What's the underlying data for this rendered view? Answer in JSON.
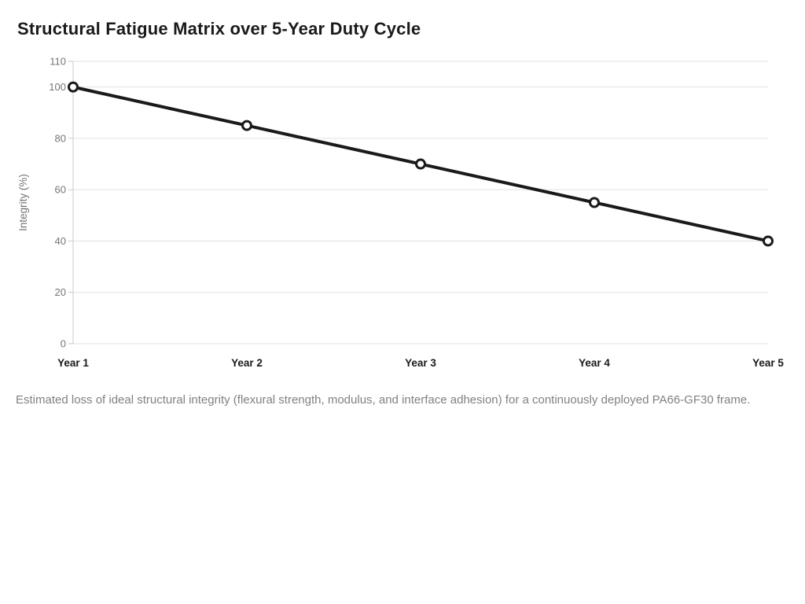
{
  "caption": {
    "text": "Estimated loss of ideal structural integrity (flexural strength, modulus, and interface adhesion) for a continuously deployed PA66-GF30 frame."
  },
  "chart_data": {
    "type": "line",
    "title": "Structural Fatigue Matrix over 5-Year Duty Cycle",
    "categories": [
      "Year 1",
      "Year 2",
      "Year 3",
      "Year 4",
      "Year 5"
    ],
    "series": [
      {
        "values": [
          100,
          85,
          70,
          55,
          40
        ]
      }
    ],
    "xlabel": "",
    "ylabel": "Integrity (%)",
    "yticks": [
      0,
      20,
      40,
      60,
      80,
      100,
      110
    ],
    "ylim": [
      0,
      110
    ],
    "grid": true,
    "legend": false,
    "marker": "open-circle",
    "colors": {
      "line": "#1a1a1a",
      "marker_fill": "#ffffff",
      "grid": "#e0e0e0",
      "axis": "#c9c9c9",
      "tick_label": "#757575",
      "axis_title": "#757575",
      "x_label": "#1a1a1a",
      "title": "#1a1a1a",
      "caption": "#818181"
    }
  }
}
